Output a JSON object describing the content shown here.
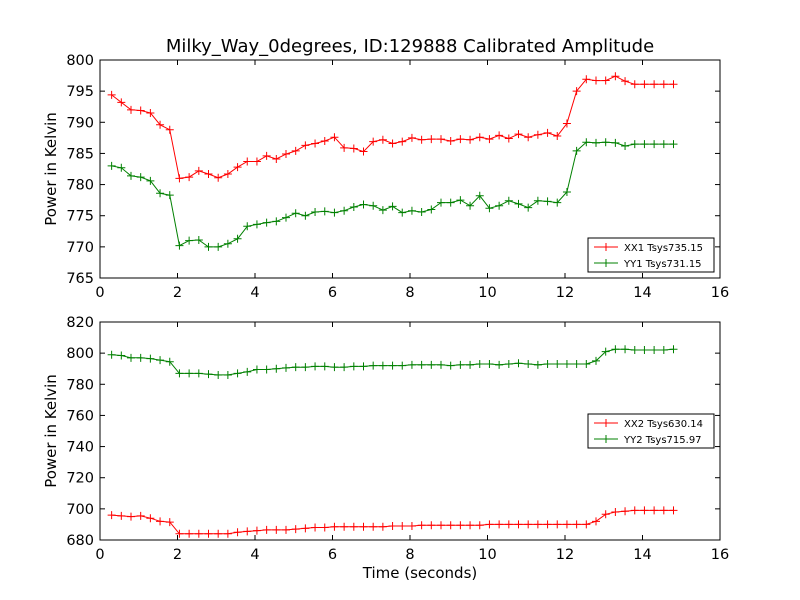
{
  "title": "Milky_Way_0degrees, ID:129888 Calibrated Amplitude",
  "colors": {
    "series1": "#ff0000",
    "series2": "#008000",
    "frame": "#000000",
    "background": "#ffffff"
  },
  "chart_data": [
    {
      "type": "line",
      "title": "Milky_Way_0degrees, ID:129888 Calibrated Amplitude",
      "xlabel": "",
      "ylabel": "Power in Kelvin",
      "xlim": [
        0,
        16
      ],
      "ylim": [
        765,
        800
      ],
      "xticks": [
        "0",
        "2",
        "4",
        "6",
        "8",
        "10",
        "12",
        "14",
        "16"
      ],
      "yticks": [
        "765",
        "770",
        "775",
        "780",
        "785",
        "790",
        "795",
        "800"
      ],
      "grid": false,
      "legend_position": "lower-right",
      "marker": "plus",
      "x": [
        0.3,
        0.55,
        0.8,
        1.05,
        1.3,
        1.55,
        1.8,
        2.05,
        2.3,
        2.55,
        2.8,
        3.05,
        3.3,
        3.55,
        3.8,
        4.05,
        4.3,
        4.55,
        4.8,
        5.05,
        5.3,
        5.55,
        5.8,
        6.05,
        6.3,
        6.55,
        6.8,
        7.05,
        7.3,
        7.55,
        7.8,
        8.05,
        8.3,
        8.55,
        8.8,
        9.05,
        9.3,
        9.55,
        9.8,
        10.05,
        10.3,
        10.55,
        10.8,
        11.05,
        11.3,
        11.55,
        11.8,
        12.05,
        12.3,
        12.55,
        12.8,
        13.05,
        13.3,
        13.55,
        13.8,
        14.05,
        14.3,
        14.55,
        14.8
      ],
      "series": [
        {
          "name": "XX1 Tsys735.15",
          "color": "#ff0000",
          "values": [
            794.4,
            793.2,
            792.0,
            791.9,
            791.5,
            789.6,
            788.8,
            781.0,
            781.2,
            782.2,
            781.7,
            781.1,
            781.7,
            782.8,
            783.7,
            783.7,
            784.6,
            784.1,
            784.9,
            785.4,
            786.3,
            786.6,
            787.0,
            787.6,
            785.9,
            785.8,
            785.3,
            786.9,
            787.2,
            786.6,
            786.9,
            787.5,
            787.2,
            787.3,
            787.3,
            787.0,
            787.3,
            787.2,
            787.6,
            787.3,
            787.9,
            787.4,
            788.1,
            787.6,
            788.0,
            788.3,
            787.8,
            789.8,
            795.0,
            796.9,
            796.7,
            796.7,
            797.4,
            796.6,
            796.1,
            796.1,
            796.1,
            796.1,
            796.1
          ]
        },
        {
          "name": "YY1 Tsys731.15",
          "color": "#008000",
          "values": [
            783.0,
            782.7,
            781.4,
            781.2,
            780.6,
            778.6,
            778.3,
            770.2,
            771.0,
            771.1,
            770.0,
            770.0,
            770.5,
            771.3,
            773.3,
            773.6,
            773.9,
            774.1,
            774.7,
            775.4,
            775.0,
            775.6,
            775.7,
            775.5,
            775.8,
            776.4,
            776.8,
            776.6,
            775.9,
            776.5,
            775.5,
            775.8,
            775.6,
            776.0,
            777.1,
            777.1,
            777.5,
            776.6,
            778.2,
            776.2,
            776.6,
            777.4,
            776.9,
            776.3,
            777.4,
            777.3,
            777.1,
            778.8,
            785.4,
            786.8,
            786.7,
            786.8,
            786.7,
            786.2,
            786.5,
            786.5,
            786.5,
            786.5,
            786.5
          ]
        }
      ]
    },
    {
      "type": "line",
      "title": "",
      "xlabel": "Time (seconds)",
      "ylabel": "Power in Kelvin",
      "xlim": [
        0,
        16
      ],
      "ylim": [
        680,
        820
      ],
      "xticks": [
        "0",
        "2",
        "4",
        "6",
        "8",
        "10",
        "12",
        "14",
        "16"
      ],
      "yticks": [
        "680",
        "700",
        "720",
        "740",
        "760",
        "780",
        "800",
        "820"
      ],
      "grid": false,
      "legend_position": "center-right",
      "marker": "plus",
      "x": [
        0.3,
        0.55,
        0.8,
        1.05,
        1.3,
        1.55,
        1.8,
        2.05,
        2.3,
        2.55,
        2.8,
        3.05,
        3.3,
        3.55,
        3.8,
        4.05,
        4.3,
        4.55,
        4.8,
        5.05,
        5.3,
        5.55,
        5.8,
        6.05,
        6.3,
        6.55,
        6.8,
        7.05,
        7.3,
        7.55,
        7.8,
        8.05,
        8.3,
        8.55,
        8.8,
        9.05,
        9.3,
        9.55,
        9.8,
        10.05,
        10.3,
        10.55,
        10.8,
        11.05,
        11.3,
        11.55,
        11.8,
        12.05,
        12.3,
        12.55,
        12.8,
        13.05,
        13.3,
        13.55,
        13.8,
        14.05,
        14.3,
        14.55,
        14.8
      ],
      "series": [
        {
          "name": "XX2 Tsys630.14",
          "color": "#ff0000",
          "values": [
            696,
            695.5,
            695,
            695.5,
            694,
            692,
            691.5,
            684,
            684,
            684,
            684,
            684,
            684,
            685,
            685.5,
            686,
            686.5,
            686.5,
            686.5,
            687,
            687.5,
            688,
            688,
            688.5,
            688.5,
            688.5,
            688.5,
            688.5,
            688.5,
            689,
            689,
            689,
            689.5,
            689.5,
            689.5,
            689.5,
            689.5,
            689.5,
            689.5,
            690,
            690,
            690,
            690,
            690,
            690,
            690,
            690,
            690,
            690,
            690,
            692,
            696.5,
            698,
            698.5,
            699,
            699,
            699,
            699,
            699
          ]
        },
        {
          "name": "YY2 Tsys715.97",
          "color": "#008000",
          "values": [
            799,
            798.5,
            797,
            797,
            796.5,
            795.5,
            794.5,
            787,
            787,
            787,
            786.5,
            786,
            786,
            787,
            788,
            789.5,
            789.5,
            790,
            790.5,
            791,
            791,
            791.5,
            791.5,
            791,
            791,
            791.5,
            791.5,
            792,
            792,
            792,
            792,
            792.5,
            792.5,
            792.5,
            792.5,
            792,
            792.5,
            792.5,
            793,
            793,
            792.5,
            793,
            793.5,
            793,
            792.5,
            793,
            793,
            793,
            793,
            793,
            795,
            801,
            802.5,
            802.5,
            802,
            802,
            802,
            802,
            802.5
          ]
        }
      ]
    }
  ]
}
